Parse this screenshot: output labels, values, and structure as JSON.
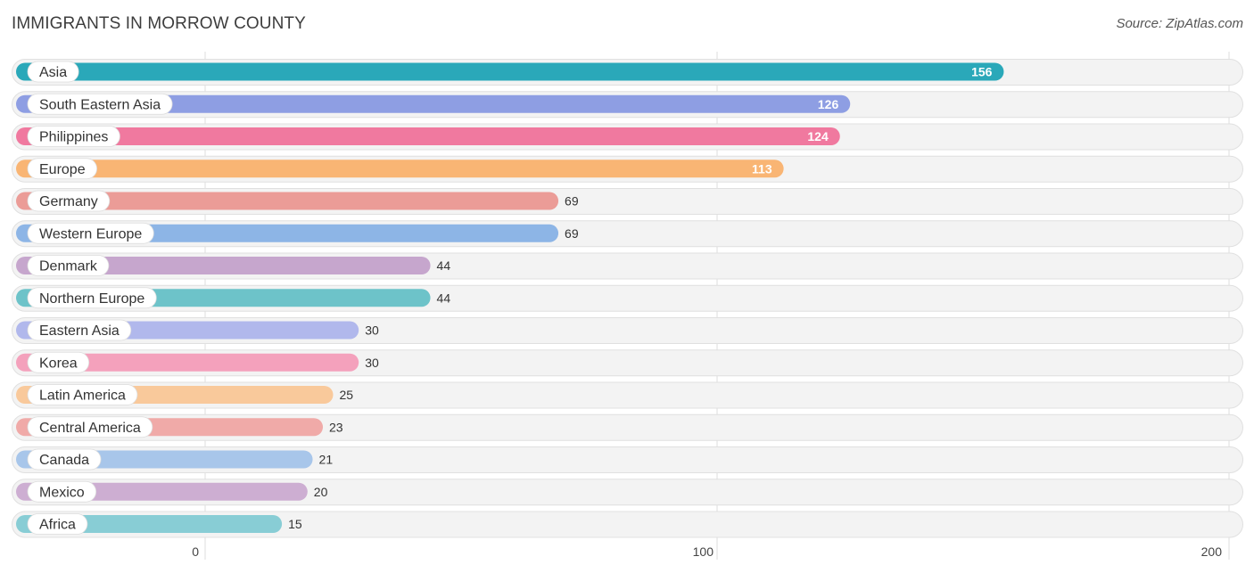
{
  "header": {
    "title": "IMMIGRANTS IN MORROW COUNTY",
    "source": "Source: ZipAtlas.com"
  },
  "chart_data": {
    "type": "bar",
    "orientation": "horizontal",
    "title": "IMMIGRANTS IN MORROW COUNTY",
    "categories": [
      "Asia",
      "South Eastern Asia",
      "Philippines",
      "Europe",
      "Germany",
      "Western Europe",
      "Denmark",
      "Northern Europe",
      "Eastern Asia",
      "Korea",
      "Latin America",
      "Central America",
      "Canada",
      "Mexico",
      "Africa"
    ],
    "values": [
      156,
      126,
      124,
      113,
      69,
      69,
      44,
      44,
      30,
      30,
      25,
      23,
      21,
      20,
      15
    ],
    "colors": [
      "#2aa8b9",
      "#8e9ee3",
      "#f0799f",
      "#f9b574",
      "#eb9c97",
      "#8db5e6",
      "#c6a6cd",
      "#6dc3c9",
      "#b1b8ec",
      "#f4a1bc",
      "#f9c99b",
      "#f0aaa8",
      "#a8c6ea",
      "#cdaed2",
      "#88cdd5"
    ],
    "xlim": [
      0,
      200
    ],
    "xticks": [
      0,
      100,
      200
    ],
    "xlabel": "",
    "ylabel": "",
    "grid": true
  }
}
